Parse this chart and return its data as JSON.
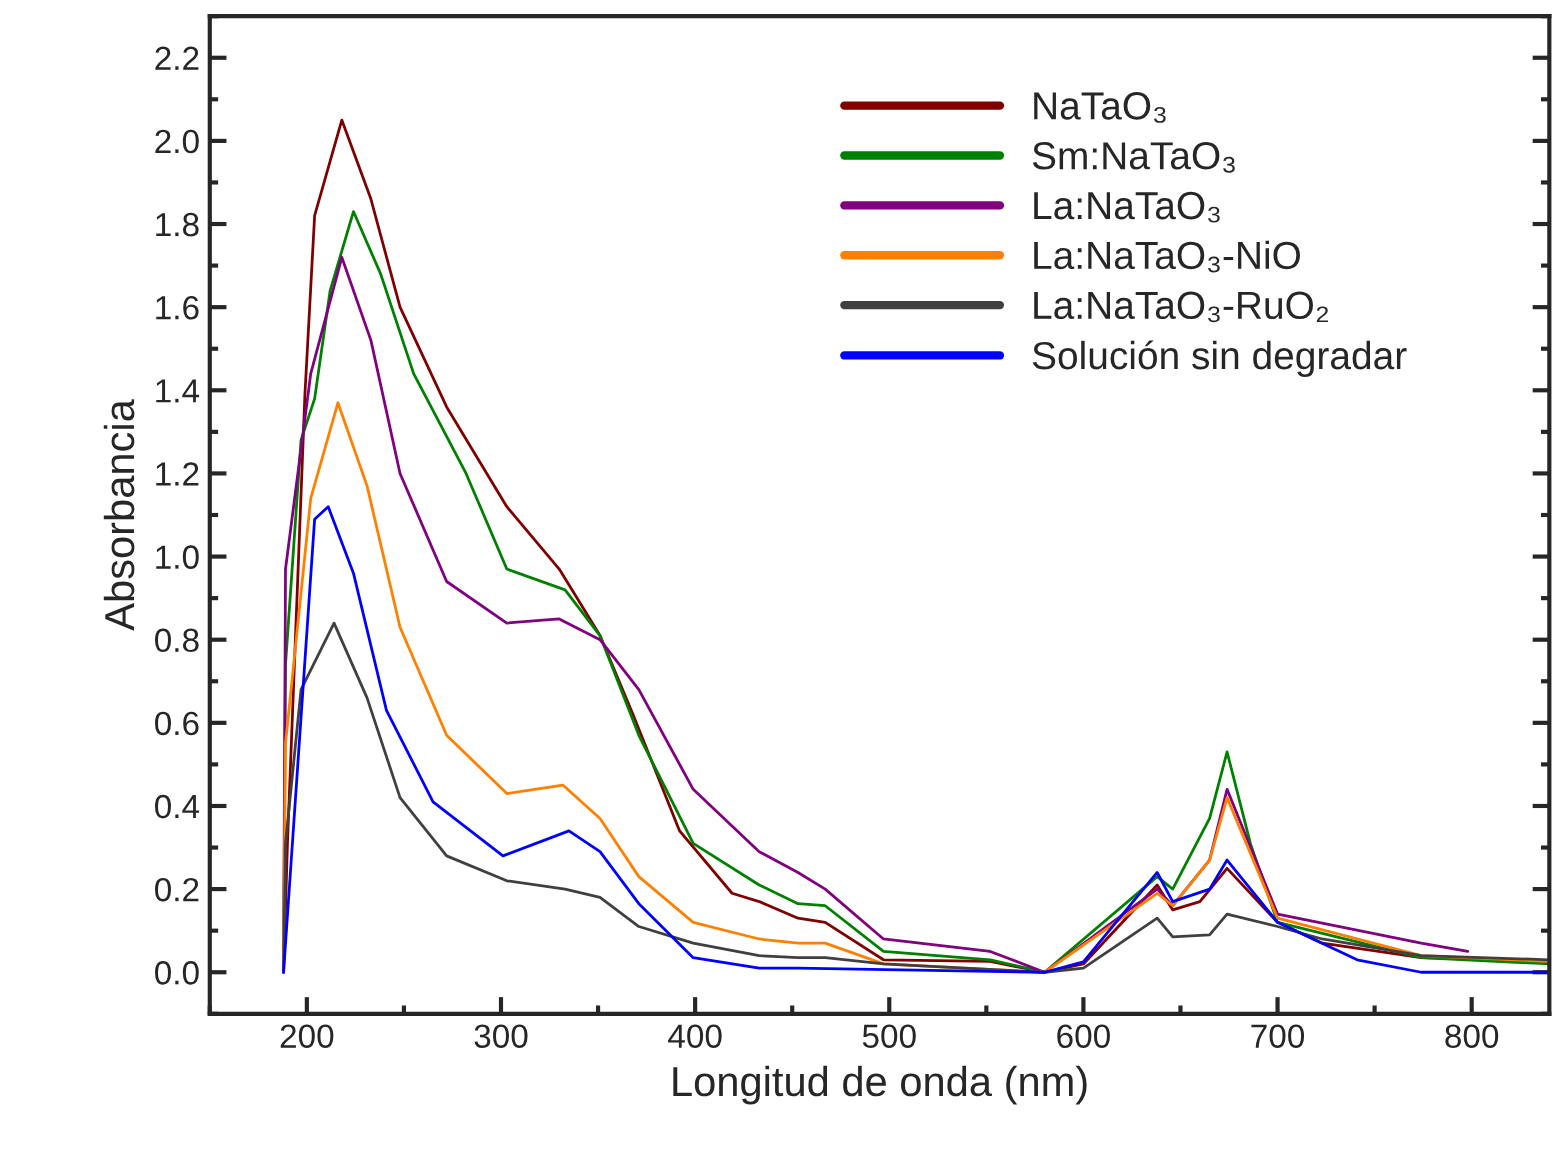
{
  "chart_data": {
    "type": "line",
    "xlabel": "Longitud de onda (nm)",
    "ylabel": "Absorbancia",
    "xlim": [
      150,
      840
    ],
    "ylim": [
      -0.1,
      2.3
    ],
    "xticks": [
      200,
      300,
      400,
      500,
      600,
      700,
      800
    ],
    "yticks": [
      {
        "value": 0,
        "label": "0.0"
      },
      0.2,
      0.4,
      0.6,
      0.8,
      {
        "value": 1,
        "label": "1.0"
      },
      1.2,
      1.4,
      1.6,
      1.8,
      {
        "value": 2,
        "label": "2.0"
      },
      2.2
    ],
    "grid": false,
    "legend": "top right",
    "line_style": "solid",
    "marker": "none",
    "series": [
      {
        "name": "NaTaO₃",
        "color": "#800000",
        "x": [
          188,
          190,
          199,
          204,
          218,
          233,
          248,
          272,
          303,
          330,
          351,
          368,
          392,
          419,
          433,
          453,
          467,
          497,
          552,
          580,
          600,
          638,
          646,
          660,
          674,
          700,
          723,
          774,
          840
        ],
        "values": [
          0.0,
          0.31,
          1.39,
          1.82,
          2.05,
          1.86,
          1.6,
          1.36,
          1.12,
          0.97,
          0.81,
          0.62,
          0.34,
          0.19,
          0.17,
          0.13,
          0.12,
          0.03,
          0.026,
          0.0,
          0.02,
          0.21,
          0.15,
          0.17,
          0.25,
          0.12,
          0.07,
          0.035,
          0.026
        ]
      },
      {
        "name": "Sm:NaTaO₃",
        "color": "#008000",
        "x": [
          188,
          189,
          197,
          204,
          212,
          224,
          238,
          255,
          282,
          303,
          333,
          351,
          371,
          399,
          433,
          453,
          467,
          497,
          552,
          580,
          638,
          646,
          665,
          674,
          686,
          700,
          774,
          840
        ],
        "values": [
          0.0,
          0.74,
          1.28,
          1.38,
          1.64,
          1.83,
          1.68,
          1.44,
          1.2,
          0.97,
          0.92,
          0.81,
          0.57,
          0.31,
          0.21,
          0.165,
          0.16,
          0.05,
          0.03,
          0.0,
          0.23,
          0.2,
          0.37,
          0.53,
          0.31,
          0.12,
          0.035,
          0.02
        ]
      },
      {
        "name": "La:NaTaO₃",
        "color": "#800080",
        "x": [
          188,
          189,
          202,
          218,
          233,
          248,
          272,
          303,
          330,
          351,
          371,
          399,
          433,
          453,
          467,
          497,
          552,
          580,
          638,
          646,
          665,
          674,
          700,
          774,
          798
        ],
        "values": [
          0.0,
          0.97,
          1.44,
          1.72,
          1.52,
          1.2,
          0.94,
          0.84,
          0.85,
          0.8,
          0.68,
          0.44,
          0.29,
          0.24,
          0.2,
          0.08,
          0.05,
          0.0,
          0.2,
          0.16,
          0.27,
          0.44,
          0.14,
          0.07,
          0.05
        ]
      },
      {
        "name": "La:NaTaO₃-NiO",
        "color": "#ff8000",
        "x": [
          188,
          189,
          202,
          216,
          231,
          248,
          272,
          303,
          332,
          351,
          371,
          399,
          433,
          453,
          467,
          497,
          580,
          638,
          646,
          665,
          674,
          700,
          774,
          840
        ],
        "values": [
          0.0,
          0.55,
          1.14,
          1.37,
          1.17,
          0.83,
          0.57,
          0.43,
          0.45,
          0.37,
          0.23,
          0.12,
          0.08,
          0.07,
          0.07,
          0.02,
          0.0,
          0.19,
          0.16,
          0.27,
          0.42,
          0.13,
          0.04,
          0.026
        ]
      },
      {
        "name": "La:NaTaO₃-RuO₂",
        "color": "#404040",
        "x": [
          188,
          189,
          197,
          214,
          231,
          248,
          272,
          303,
          333,
          351,
          371,
          399,
          433,
          453,
          467,
          497,
          580,
          600,
          638,
          646,
          665,
          674,
          700,
          723,
          774,
          840
        ],
        "values": [
          0.0,
          0.31,
          0.68,
          0.84,
          0.66,
          0.42,
          0.28,
          0.22,
          0.2,
          0.18,
          0.11,
          0.07,
          0.04,
          0.035,
          0.035,
          0.02,
          0.0,
          0.01,
          0.13,
          0.085,
          0.09,
          0.14,
          0.11,
          0.08,
          0.04,
          0.03
        ]
      },
      {
        "name": "Solución sin degradar",
        "color": "#0000ff",
        "x": [
          188,
          204,
          211,
          224,
          241,
          265,
          301,
          335,
          351,
          371,
          399,
          433,
          453,
          580,
          600,
          638,
          646,
          665,
          674,
          700,
          741,
          774,
          840
        ],
        "values": [
          0.0,
          1.09,
          1.12,
          0.96,
          0.63,
          0.41,
          0.28,
          0.34,
          0.29,
          0.165,
          0.035,
          0.01,
          0.01,
          0.0,
          0.025,
          0.24,
          0.17,
          0.2,
          0.27,
          0.12,
          0.03,
          0.0,
          0.0
        ]
      }
    ]
  }
}
